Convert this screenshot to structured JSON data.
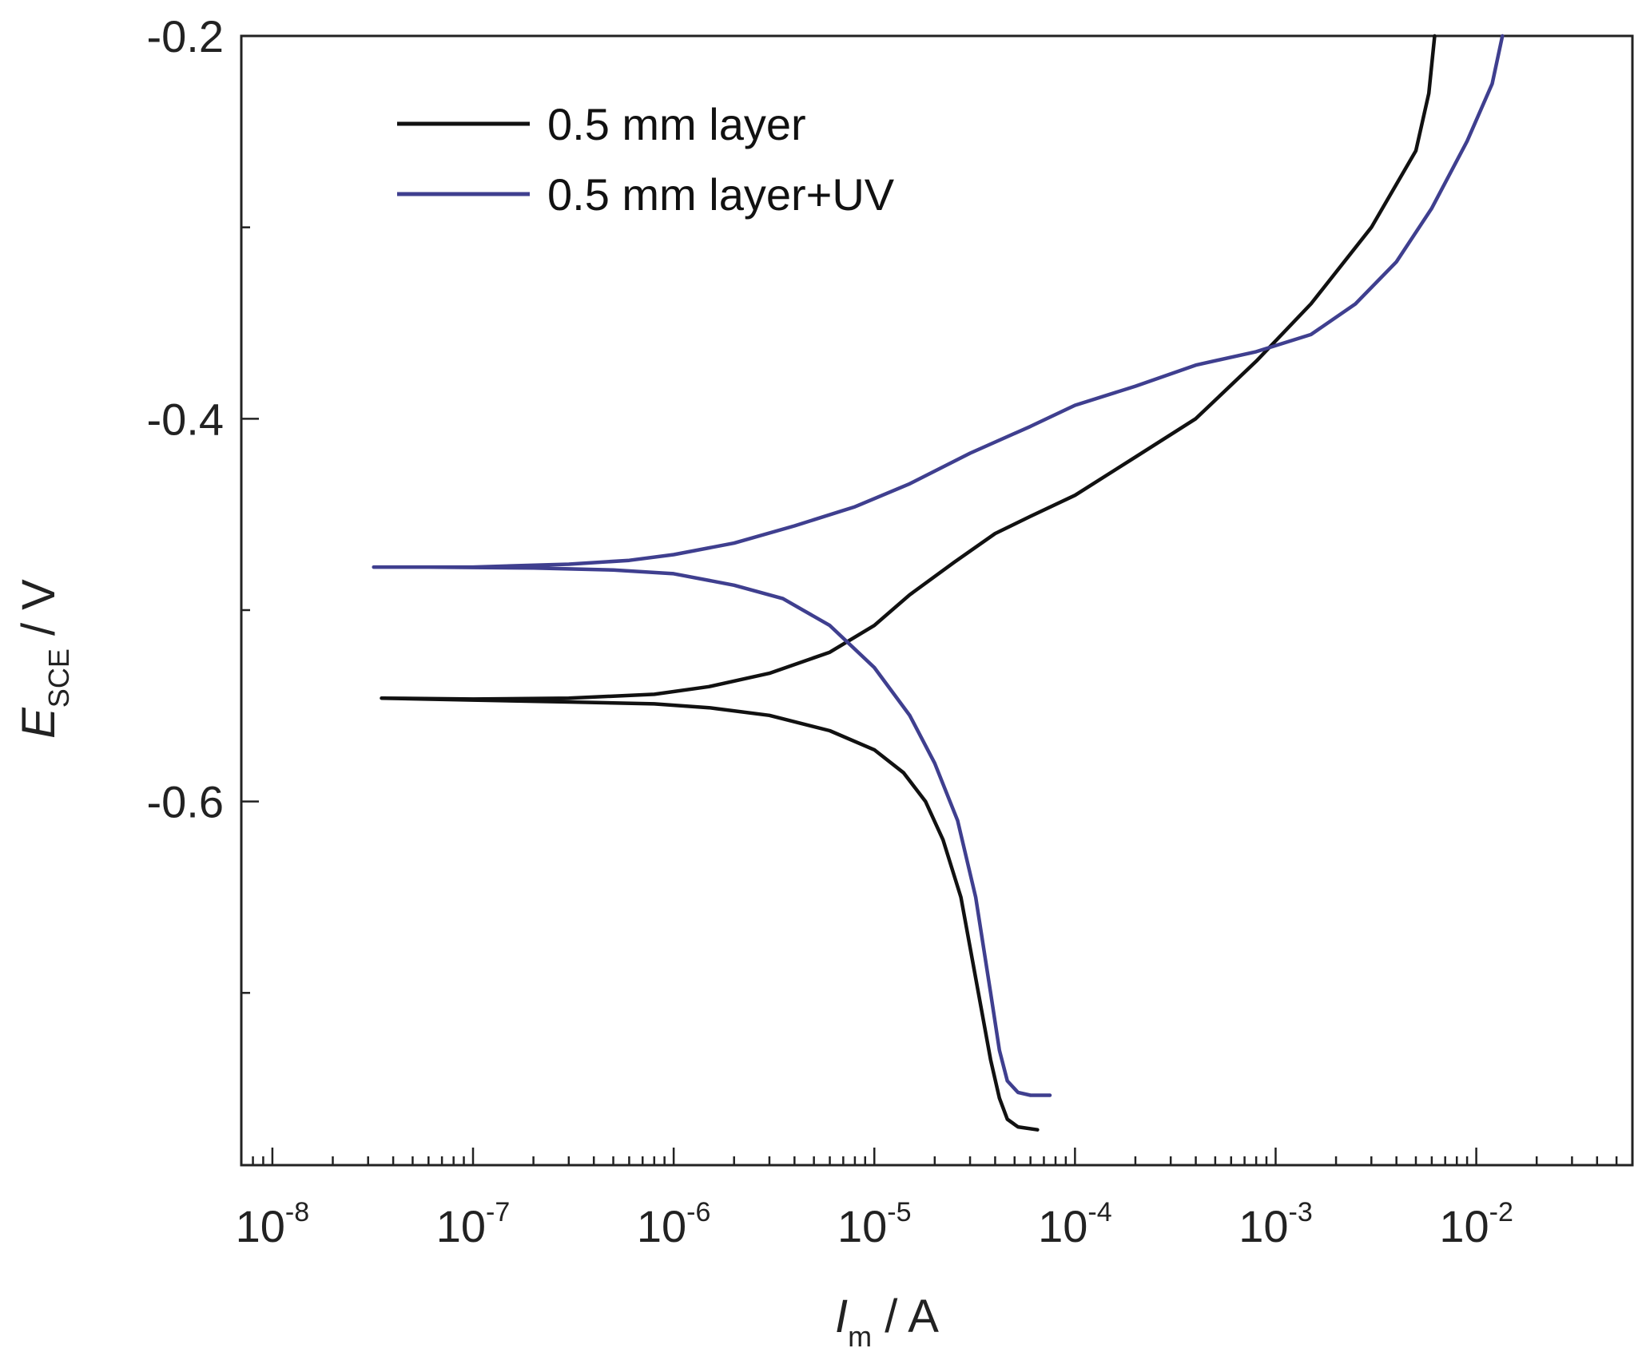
{
  "chart_data": {
    "type": "line",
    "xscale": "log",
    "xlim": [
      7e-09,
      0.06
    ],
    "ylim": [
      -0.79,
      -0.2
    ],
    "xticks": [
      {
        "value": 1e-08,
        "base": "10",
        "exp": "-8"
      },
      {
        "value": 1e-07,
        "base": "10",
        "exp": "-7"
      },
      {
        "value": 1e-06,
        "base": "10",
        "exp": "-6"
      },
      {
        "value": 1e-05,
        "base": "10",
        "exp": "-5"
      },
      {
        "value": 0.0001,
        "base": "10",
        "exp": "-4"
      },
      {
        "value": 0.001,
        "base": "10",
        "exp": "-3"
      },
      {
        "value": 0.01,
        "base": "10",
        "exp": "-2"
      }
    ],
    "yticks": [
      {
        "value": -0.2,
        "label": "-0.2"
      },
      {
        "value": -0.4,
        "label": "-0.4"
      },
      {
        "value": -0.6,
        "label": "-0.6"
      }
    ],
    "yminor": [
      -0.3,
      -0.5,
      -0.7
    ],
    "xlabel": {
      "main": "I",
      "sub": "m",
      "unit": " / A"
    },
    "ylabel": {
      "main": "E",
      "sub": "SCE",
      "unit": " / V"
    },
    "legend_position": "top-left",
    "series": [
      {
        "name": "0.5 mm layer",
        "color": "#111111",
        "points": [
          [
            6.5e-05,
            -0.7715
          ],
          [
            5.2e-05,
            -0.77
          ],
          [
            4.6e-05,
            -0.766
          ],
          [
            4.2e-05,
            -0.755
          ],
          [
            3.8e-05,
            -0.735
          ],
          [
            3.3e-05,
            -0.7
          ],
          [
            2.7e-05,
            -0.65
          ],
          [
            2.2e-05,
            -0.62
          ],
          [
            1.8e-05,
            -0.6
          ],
          [
            1.4e-05,
            -0.585
          ],
          [
            1e-05,
            -0.573
          ],
          [
            6e-06,
            -0.563
          ],
          [
            3e-06,
            -0.555
          ],
          [
            1.5e-06,
            -0.551
          ],
          [
            8e-07,
            -0.549
          ],
          [
            3e-07,
            -0.548
          ],
          [
            1e-07,
            -0.547
          ],
          [
            3.5e-08,
            -0.546
          ],
          [
            1e-07,
            -0.5465
          ],
          [
            3e-07,
            -0.546
          ],
          [
            8e-07,
            -0.544
          ],
          [
            1.5e-06,
            -0.54
          ],
          [
            3e-06,
            -0.533
          ],
          [
            6e-06,
            -0.522
          ],
          [
            1e-05,
            -0.508
          ],
          [
            1.5e-05,
            -0.492
          ],
          [
            2.5e-05,
            -0.475
          ],
          [
            4e-05,
            -0.46
          ],
          [
            6e-05,
            -0.451
          ],
          [
            0.0001,
            -0.44
          ],
          [
            0.0002,
            -0.42
          ],
          [
            0.0004,
            -0.4
          ],
          [
            0.0008,
            -0.37
          ],
          [
            0.0015,
            -0.34
          ],
          [
            0.003,
            -0.3
          ],
          [
            0.005,
            -0.26
          ],
          [
            0.0058,
            -0.23
          ],
          [
            0.0062,
            -0.2
          ]
        ]
      },
      {
        "name": "0.5 mm layer+UV",
        "color": "#3f3f8f",
        "points": [
          [
            7.5e-05,
            -0.7535
          ],
          [
            6e-05,
            -0.7535
          ],
          [
            5.2e-05,
            -0.752
          ],
          [
            4.6e-05,
            -0.746
          ],
          [
            4.2e-05,
            -0.73
          ],
          [
            3.8e-05,
            -0.7
          ],
          [
            3.2e-05,
            -0.65
          ],
          [
            2.6e-05,
            -0.61
          ],
          [
            2e-05,
            -0.58
          ],
          [
            1.5e-05,
            -0.555
          ],
          [
            1e-05,
            -0.53
          ],
          [
            6e-06,
            -0.508
          ],
          [
            3.5e-06,
            -0.494
          ],
          [
            2e-06,
            -0.487
          ],
          [
            1e-06,
            -0.481
          ],
          [
            5e-07,
            -0.479
          ],
          [
            2e-07,
            -0.478
          ],
          [
            6e-08,
            -0.4775
          ],
          [
            3.2e-08,
            -0.4775
          ],
          [
            1e-07,
            -0.4775
          ],
          [
            3e-07,
            -0.476
          ],
          [
            6e-07,
            -0.474
          ],
          [
            1e-06,
            -0.471
          ],
          [
            2e-06,
            -0.465
          ],
          [
            4e-06,
            -0.456
          ],
          [
            8e-06,
            -0.446
          ],
          [
            1.5e-05,
            -0.434
          ],
          [
            3e-05,
            -0.418
          ],
          [
            6e-05,
            -0.404
          ],
          [
            0.0001,
            -0.393
          ],
          [
            0.0002,
            -0.383
          ],
          [
            0.0004,
            -0.372
          ],
          [
            0.0008,
            -0.365
          ],
          [
            0.0015,
            -0.356
          ],
          [
            0.0025,
            -0.34
          ],
          [
            0.004,
            -0.318
          ],
          [
            0.006,
            -0.29
          ],
          [
            0.009,
            -0.255
          ],
          [
            0.012,
            -0.225
          ],
          [
            0.0135,
            -0.2
          ]
        ]
      }
    ]
  }
}
